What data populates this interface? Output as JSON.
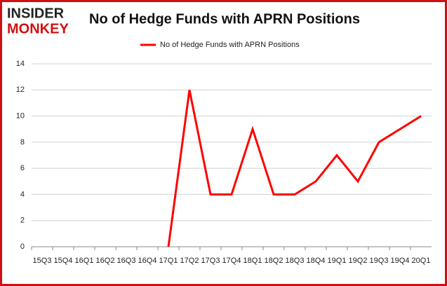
{
  "logo": {
    "line1": "INSIDER",
    "line2": "MONKEY"
  },
  "chart_data": {
    "type": "line",
    "title": "No of Hedge Funds with APRN Positions",
    "categories": [
      "15Q3",
      "15Q4",
      "16Q1",
      "16Q2",
      "16Q3",
      "16Q4",
      "17Q1",
      "17Q2",
      "17Q3",
      "17Q4",
      "18Q1",
      "18Q2",
      "18Q3",
      "18Q4",
      "19Q1",
      "19Q2",
      "19Q3",
      "19Q4",
      "20Q1"
    ],
    "series": [
      {
        "name": "No of Hedge Funds with APRN Positions",
        "color": "#ff0000",
        "values": [
          null,
          null,
          null,
          null,
          null,
          null,
          0,
          12,
          4,
          4,
          9,
          4,
          4,
          5,
          7,
          5,
          8,
          9,
          10
        ]
      }
    ],
    "ylim": [
      0,
      14
    ],
    "yticks": [
      0,
      2,
      4,
      6,
      8,
      10,
      12,
      14
    ],
    "grid": true,
    "legend": "top"
  }
}
